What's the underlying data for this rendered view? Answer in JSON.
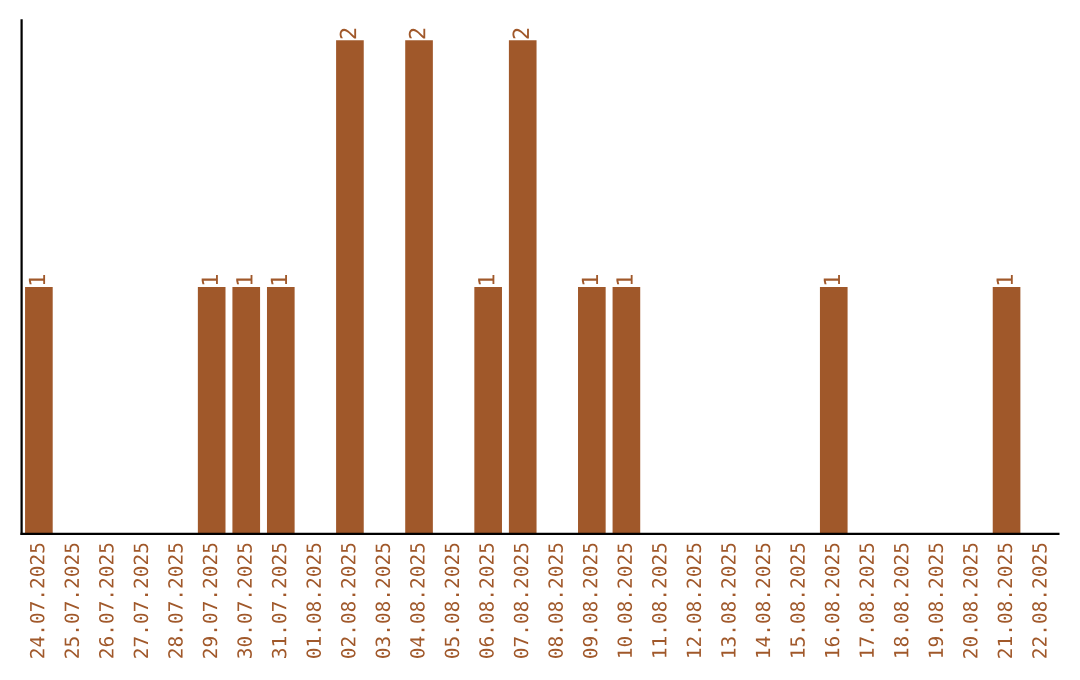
{
  "chart_data": {
    "type": "bar",
    "categories": [
      "24.07.2025",
      "25.07.2025",
      "26.07.2025",
      "27.07.2025",
      "28.07.2025",
      "29.07.2025",
      "30.07.2025",
      "31.07.2025",
      "01.08.2025",
      "02.08.2025",
      "03.08.2025",
      "04.08.2025",
      "05.08.2025",
      "06.08.2025",
      "07.08.2025",
      "08.08.2025",
      "09.08.2025",
      "10.08.2025",
      "11.08.2025",
      "12.08.2025",
      "13.08.2025",
      "14.08.2025",
      "15.08.2025",
      "16.08.2025",
      "17.08.2025",
      "18.08.2025",
      "19.08.2025",
      "20.08.2025",
      "21.08.2025",
      "22.08.2025"
    ],
    "values": [
      1,
      0,
      0,
      0,
      0,
      1,
      1,
      1,
      0,
      2,
      0,
      2,
      0,
      1,
      2,
      0,
      1,
      1,
      0,
      0,
      0,
      0,
      0,
      1,
      0,
      0,
      0,
      0,
      1,
      0
    ],
    "value_labels": [
      "1",
      null,
      null,
      null,
      null,
      "1",
      "1",
      "1",
      null,
      "2",
      null,
      "2",
      null,
      "1",
      "2",
      null,
      "1",
      "1",
      null,
      null,
      null,
      null,
      null,
      "1",
      null,
      null,
      null,
      null,
      "1",
      null
    ],
    "color": "#a0582a",
    "tick_labels": "x",
    "grid": false,
    "legend": false
  }
}
